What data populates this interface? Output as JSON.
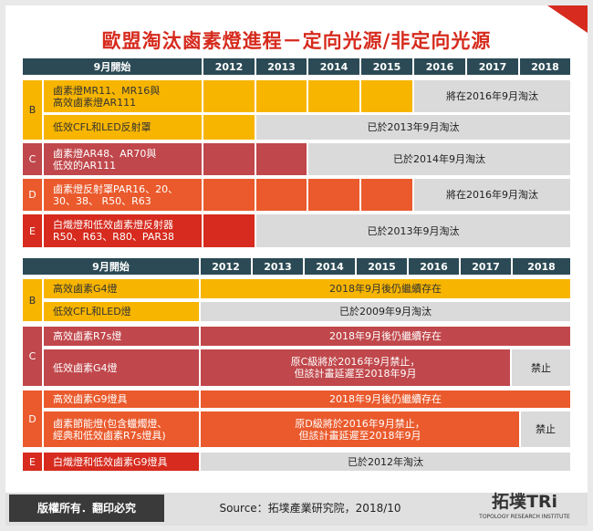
{
  "header": {
    "title": "歐盟淘汰鹵素燈進程－定向光源/非定向光源"
  },
  "tables": [
    {
      "columns": [
        "9月開始",
        "2012",
        "2013",
        "2014",
        "2015",
        "2016",
        "2017",
        "2018"
      ],
      "groups": [
        {
          "letter": "B",
          "rows": [
            {
              "label": "鹵素燈MR11、MR16與\n高效鹵素燈AR111",
              "status": "將在2016年9月淘汰"
            },
            {
              "label": "低效CFL和LED反射罩",
              "status": "已於2013年9月淘汰"
            }
          ]
        },
        {
          "letter": "C",
          "rows": [
            {
              "label": "鹵素燈AR48、AR70與\n低效的AR111",
              "status": "已於2014年9月淘汰"
            }
          ]
        },
        {
          "letter": "D",
          "rows": [
            {
              "label": "鹵素燈反射罩PAR16、20、\n30、38、 R50、R63",
              "status": "將在2016年9月淘汰"
            }
          ]
        },
        {
          "letter": "E",
          "rows": [
            {
              "label": "白熾燈和低效鹵素燈反射器\nR50、R63、R80、PAR38",
              "status": "已於2013年9月淘汰"
            }
          ]
        }
      ]
    },
    {
      "columns": [
        "9月開始",
        "2012",
        "2013",
        "2014",
        "2015",
        "2016",
        "2017",
        "2018"
      ],
      "groups": [
        {
          "letter": "B",
          "rows": [
            {
              "label": "高效鹵素G4燈",
              "status": "2018年9月後仍繼續存在"
            },
            {
              "label": "低效CFL和LED燈",
              "status": "已於2009年9月淘汰"
            }
          ]
        },
        {
          "letter": "C",
          "rows": [
            {
              "label": "高效鹵素R7s燈",
              "status": "2018年9月後仍繼續存在"
            },
            {
              "label": "低效鹵素G4燈",
              "status": "原C級將於2016年9月禁止，\n但該計畫延遲至2018年9月",
              "status2": "禁止"
            }
          ]
        },
        {
          "letter": "D",
          "rows": [
            {
              "label": "高效鹵素G9燈具",
              "status": "2018年9月後仍繼續存在"
            },
            {
              "label": "鹵素節能燈(包含蠟燭燈、\n經典和低效鹵素R7s燈具)",
              "status": "原D級將於2016年9月禁止，\n但該計畫延遲至2018年9月",
              "status2": "禁止"
            }
          ]
        },
        {
          "letter": "E",
          "rows": [
            {
              "label": "白熾燈和低效鹵素G9燈具",
              "status": "已於2012年淘汰"
            }
          ]
        }
      ]
    }
  ],
  "footer": {
    "copyright": "版權所有．翻印必究",
    "source": "Source：拓墣產業研究院，2018/10",
    "logo": "拓墣TRi",
    "logo_subtitle": "TOPOLOGY RESEARCH INSTITUTE"
  }
}
